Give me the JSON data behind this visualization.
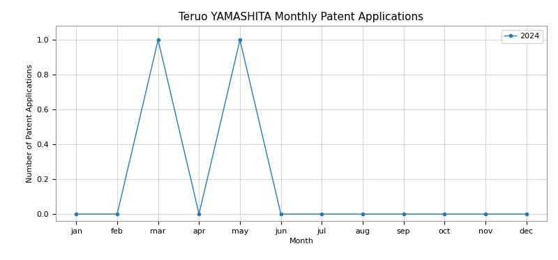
{
  "title": "Teruo YAMASHITA Monthly Patent Applications",
  "xlabel": "Month",
  "ylabel": "Number of Patent Applications",
  "months": [
    "jan",
    "feb",
    "mar",
    "apr",
    "may",
    "jun",
    "jul",
    "aug",
    "sep",
    "oct",
    "nov",
    "dec"
  ],
  "values": [
    0,
    0,
    1,
    0,
    1,
    0,
    0,
    0,
    0,
    0,
    0,
    0
  ],
  "line_color": "#2878b5",
  "marker": "o",
  "marker_size": 3,
  "legend_label": "2024",
  "ylim": [
    -0.04,
    1.08
  ],
  "yticks": [
    0.0,
    0.2,
    0.4,
    0.6,
    0.8,
    1.0
  ],
  "background_color": "#ffffff",
  "grid_color": "#cccccc",
  "title_fontsize": 11,
  "label_fontsize": 8,
  "tick_fontsize": 8
}
